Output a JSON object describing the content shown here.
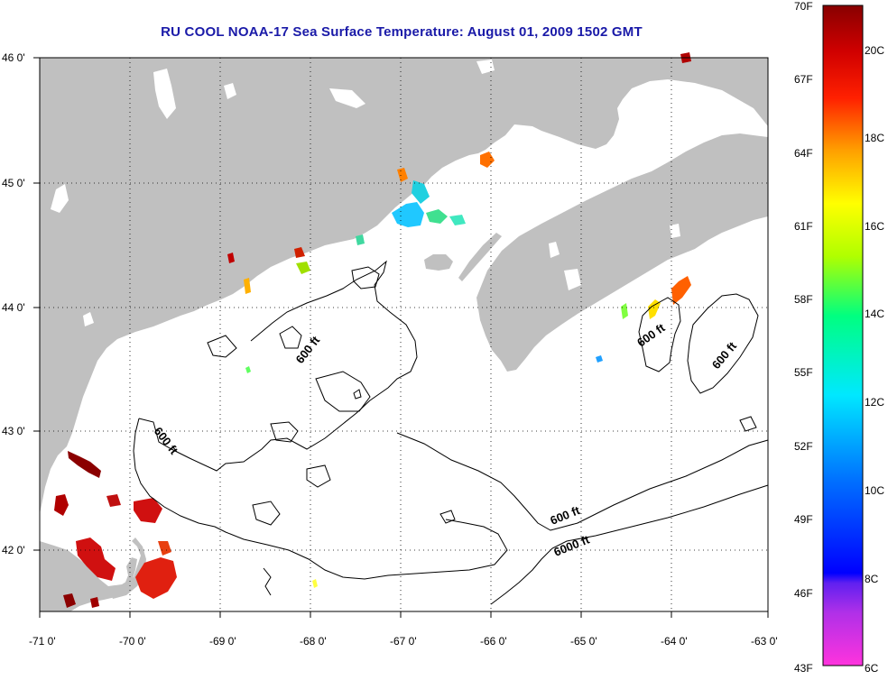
{
  "title": "RU COOL  NOAA-17  Sea Surface Temperature:  August 01, 2009 1502 GMT",
  "map": {
    "lon_labels": [
      "-71 0'",
      "-70 0'",
      "-69 0'",
      "-68 0'",
      "-67 0'",
      "-66 0'",
      "-65 0'",
      "-64 0'",
      "-63 0'"
    ],
    "lat_labels": [
      "46 0'",
      "45 0'",
      "44 0'",
      "43 0'",
      "42 0'"
    ],
    "isobath_labels": [
      "600 ft",
      "600 ft",
      "600 ft",
      "600 ft",
      "600 ft",
      "6000 ft"
    ]
  },
  "colorbar": {
    "fahrenheit": [
      "70F",
      "67F",
      "64F",
      "61F",
      "58F",
      "55F",
      "52F",
      "49F",
      "46F",
      "43F"
    ],
    "celsius": [
      "20C",
      "18C",
      "16C",
      "14C",
      "12C",
      "10C",
      "8C",
      "6C"
    ]
  },
  "colors": {
    "land": "#c0c0c0",
    "ocean": "#ffffff",
    "title": "#1a1aa8"
  }
}
